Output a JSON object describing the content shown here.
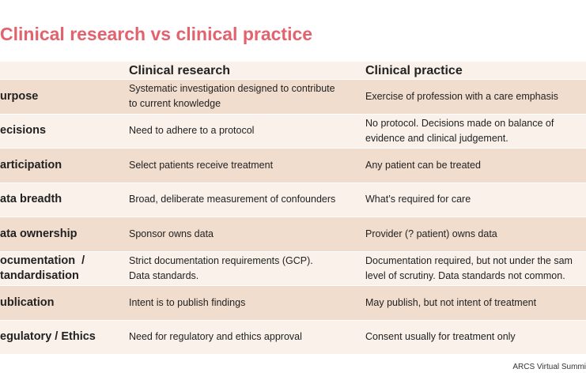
{
  "title": "Clinical research vs clinical practice",
  "table": {
    "header": [
      "Clinical research",
      "Clinical practice"
    ],
    "rows": [
      [
        "urpose",
        "Systematic investigation designed to contribute\nto current knowledge",
        "Exercise of profession with a care emphasis"
      ],
      [
        "ecisions",
        "Need to adhere to a protocol",
        "No protocol. Decisions made on balance of\nevidence and clinical judgement."
      ],
      [
        "articipation",
        "Select patients receive treatment",
        "Any patient can be treated"
      ],
      [
        "ata breadth",
        "Broad, deliberate measurement of confounders",
        "What’s required for care"
      ],
      [
        "ata ownership",
        "Sponsor owns data",
        "Provider (? patient) owns data"
      ],
      [
        "ocumentation  /\ntandardisation",
        "Strict documentation requirements (GCP).\nData standards.",
        "Documentation required, but not under the sam\nlevel of scrutiny. Data standards not common."
      ],
      [
        "ublication",
        "Intent is to publish findings",
        "May publish, but not intent of treatment"
      ],
      [
        "egulatory / Ethics",
        "Need for regulatory and ethics approval",
        "Consent usually for treatment only"
      ]
    ]
  },
  "footer": "ARCS Virtual Summi"
}
